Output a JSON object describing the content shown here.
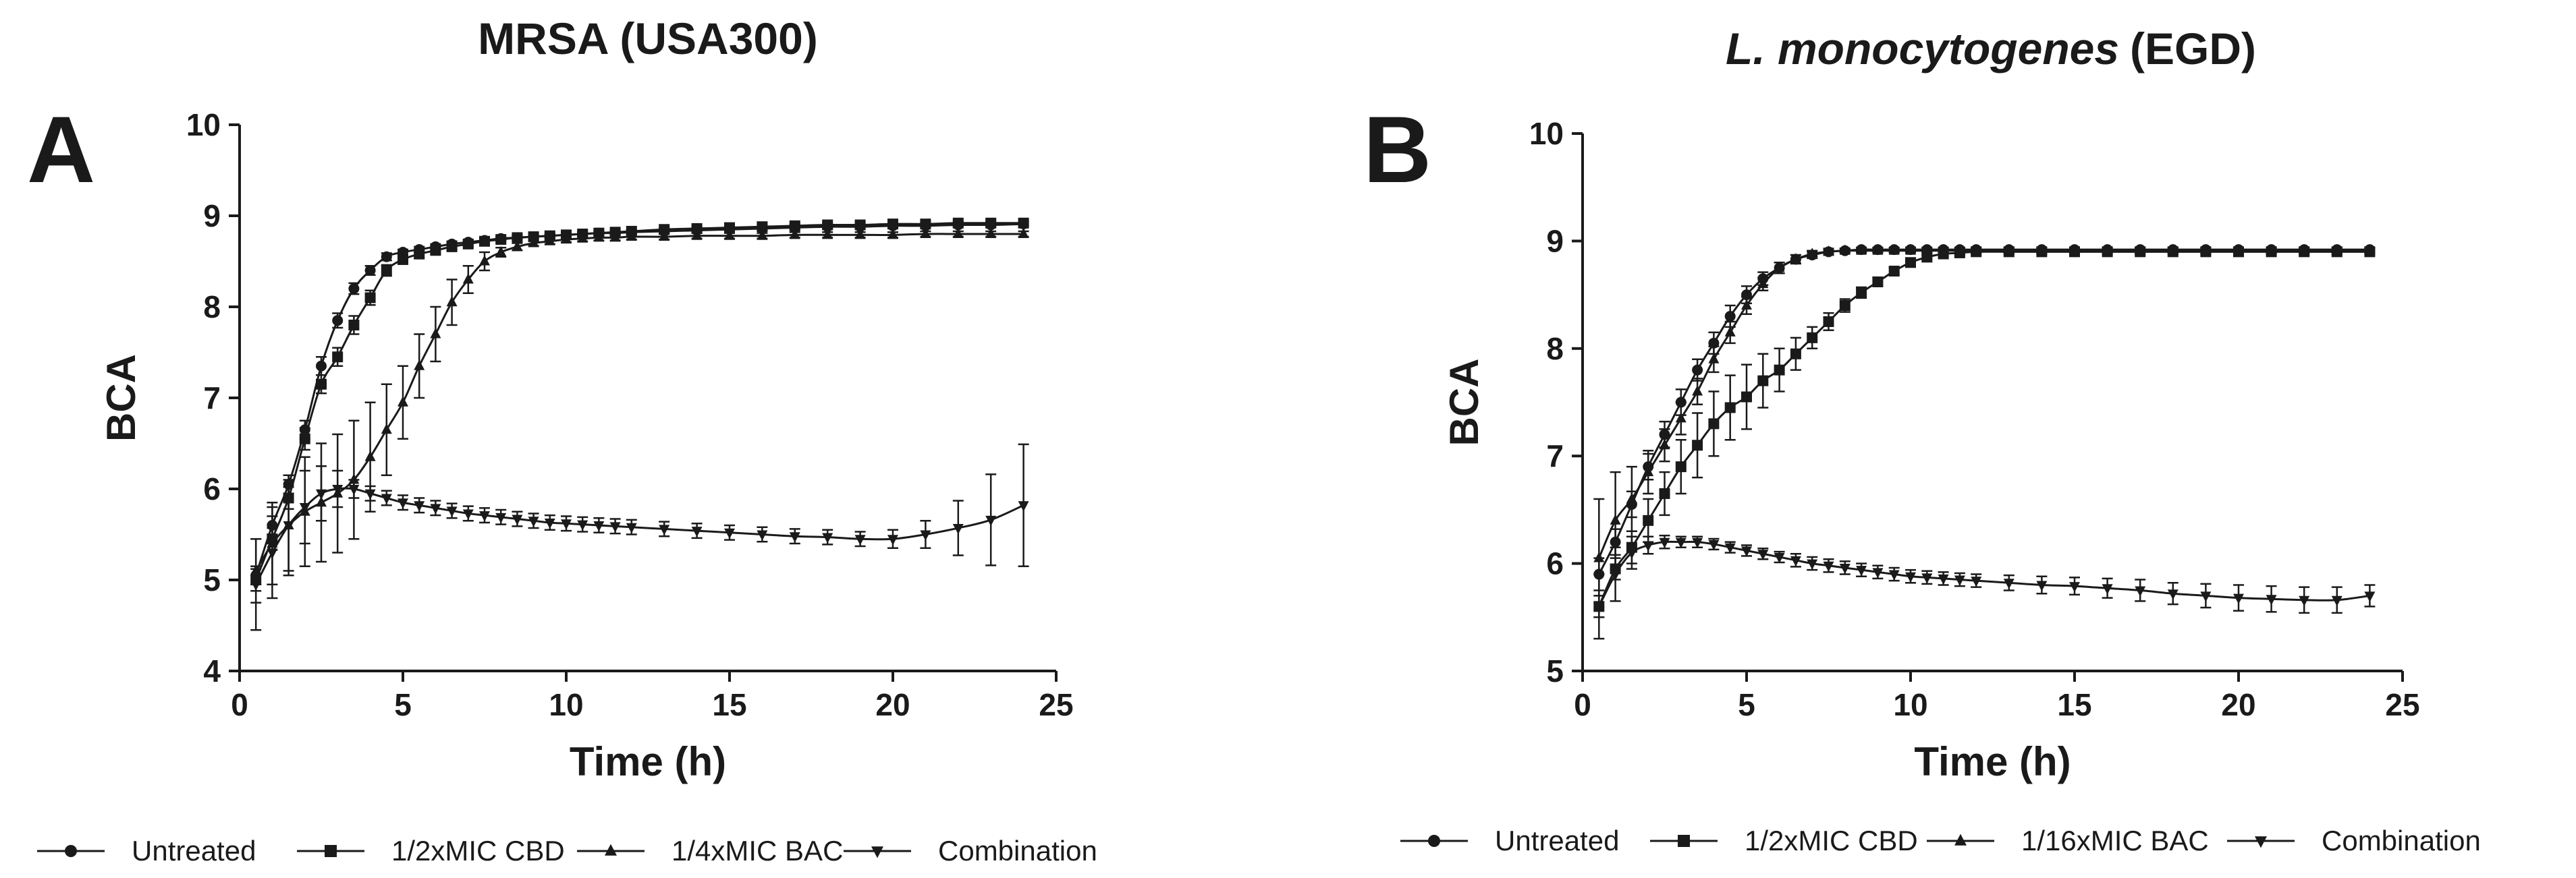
{
  "chart_data": [
    {
      "type": "line",
      "panel_label": "A",
      "title_main": "MRSA (USA300)",
      "title_italic": "",
      "xlabel": "Time (h)",
      "ylabel": "BCA",
      "xlim": [
        0,
        25
      ],
      "ylim": [
        4,
        10
      ],
      "xticks": [
        0,
        5,
        10,
        15,
        20,
        25
      ],
      "yticks": [
        4,
        5,
        6,
        7,
        8,
        9,
        10
      ],
      "series": [
        {
          "name": "Untreated",
          "marker": "circle",
          "x": [
            0.5,
            1,
            1.5,
            2,
            2.5,
            3,
            3.5,
            4,
            4.5,
            5,
            5.5,
            6,
            6.5,
            7,
            7.5,
            8,
            8.5,
            9,
            9.5,
            10,
            10.5,
            11,
            11.5,
            12,
            13,
            14,
            15,
            16,
            17,
            18,
            19,
            20,
            21,
            22,
            23,
            24
          ],
          "y": [
            5.05,
            5.6,
            6.05,
            6.65,
            7.35,
            7.85,
            8.2,
            8.4,
            8.55,
            8.6,
            8.63,
            8.66,
            8.69,
            8.71,
            8.73,
            8.75,
            8.76,
            8.77,
            8.78,
            8.79,
            8.8,
            8.81,
            8.81,
            8.82,
            8.83,
            8.84,
            8.85,
            8.86,
            8.87,
            8.88,
            8.88,
            8.89,
            8.89,
            8.9,
            8.9,
            8.91
          ],
          "err": [
            0.1,
            0.1,
            0.1,
            0.1,
            0.1,
            0.08,
            0.06,
            0.05,
            0.04,
            0.03,
            0.03,
            0.03,
            0.03,
            0.02,
            0.02,
            0.02,
            0.02,
            0.02,
            0.02,
            0.02,
            0.02,
            0.02,
            0.02,
            0.02,
            0.02,
            0.02,
            0.02,
            0.02,
            0.02,
            0.02,
            0.02,
            0.02,
            0.02,
            0.02,
            0.02,
            0.02
          ]
        },
        {
          "name": "1/2xMIC CBD",
          "marker": "square",
          "x": [
            0.5,
            1,
            1.5,
            2,
            2.5,
            3,
            3.5,
            4,
            4.5,
            5,
            5.5,
            6,
            6.5,
            7,
            7.5,
            8,
            8.5,
            9,
            9.5,
            10,
            10.5,
            11,
            11.5,
            12,
            13,
            14,
            15,
            16,
            17,
            18,
            19,
            20,
            21,
            22,
            23,
            24
          ],
          "y": [
            5.0,
            5.45,
            5.9,
            6.55,
            7.15,
            7.45,
            7.8,
            8.1,
            8.4,
            8.52,
            8.58,
            8.62,
            8.66,
            8.69,
            8.72,
            8.74,
            8.76,
            8.77,
            8.78,
            8.79,
            8.8,
            8.81,
            8.82,
            8.83,
            8.85,
            8.86,
            8.87,
            8.88,
            8.89,
            8.9,
            8.9,
            8.91,
            8.91,
            8.92,
            8.92,
            8.92
          ],
          "err": [
            0.12,
            0.12,
            0.12,
            0.12,
            0.1,
            0.1,
            0.1,
            0.08,
            0.06,
            0.05,
            0.04,
            0.04,
            0.03,
            0.03,
            0.03,
            0.02,
            0.02,
            0.02,
            0.02,
            0.02,
            0.02,
            0.02,
            0.02,
            0.02,
            0.02,
            0.02,
            0.02,
            0.02,
            0.02,
            0.02,
            0.02,
            0.02,
            0.02,
            0.02,
            0.02,
            0.02
          ]
        },
        {
          "name": "1/4xMIC BAC",
          "marker": "triangle-up",
          "x": [
            0.5,
            1,
            1.5,
            2,
            2.5,
            3,
            3.5,
            4,
            4.5,
            5,
            5.5,
            6,
            6.5,
            7,
            7.5,
            8,
            8.5,
            9,
            9.5,
            10,
            10.5,
            11,
            11.5,
            12,
            13,
            14,
            15,
            16,
            17,
            18,
            19,
            20,
            21,
            22,
            23,
            24
          ],
          "y": [
            5.1,
            5.4,
            5.6,
            5.75,
            5.85,
            5.95,
            6.1,
            6.35,
            6.65,
            6.95,
            7.35,
            7.7,
            8.05,
            8.3,
            8.5,
            8.6,
            8.66,
            8.7,
            8.72,
            8.74,
            8.75,
            8.76,
            8.76,
            8.77,
            8.77,
            8.78,
            8.78,
            8.78,
            8.79,
            8.79,
            8.79,
            8.79,
            8.8,
            8.8,
            8.8,
            8.8
          ],
          "err": [
            0.35,
            0.45,
            0.55,
            0.6,
            0.65,
            0.65,
            0.65,
            0.6,
            0.5,
            0.4,
            0.35,
            0.3,
            0.25,
            0.15,
            0.1,
            0.05,
            0.04,
            0.03,
            0.03,
            0.03,
            0.03,
            0.03,
            0.03,
            0.03,
            0.03,
            0.03,
            0.03,
            0.03,
            0.03,
            0.03,
            0.03,
            0.03,
            0.03,
            0.03,
            0.03,
            0.03
          ]
        },
        {
          "name": "Combination",
          "marker": "triangle-down",
          "x": [
            0.5,
            1,
            1.5,
            2,
            2.5,
            3,
            3.5,
            4,
            4.5,
            5,
            5.5,
            6,
            6.5,
            7,
            7.5,
            8,
            8.5,
            9,
            9.5,
            10,
            10.5,
            11,
            11.5,
            12,
            13,
            14,
            15,
            16,
            17,
            18,
            19,
            20,
            21,
            22,
            23,
            24
          ],
          "y": [
            4.95,
            5.3,
            5.6,
            5.8,
            5.95,
            6.0,
            6.0,
            5.95,
            5.9,
            5.85,
            5.82,
            5.79,
            5.76,
            5.73,
            5.71,
            5.69,
            5.67,
            5.65,
            5.63,
            5.62,
            5.61,
            5.6,
            5.59,
            5.58,
            5.56,
            5.54,
            5.52,
            5.5,
            5.48,
            5.47,
            5.45,
            5.45,
            5.5,
            5.57,
            5.66,
            5.82
          ],
          "err": [
            0.5,
            0.5,
            0.5,
            0.4,
            0.3,
            0.2,
            0.1,
            0.08,
            0.08,
            0.08,
            0.08,
            0.08,
            0.08,
            0.08,
            0.08,
            0.08,
            0.08,
            0.08,
            0.08,
            0.08,
            0.08,
            0.08,
            0.08,
            0.08,
            0.08,
            0.08,
            0.08,
            0.08,
            0.08,
            0.08,
            0.08,
            0.1,
            0.15,
            0.3,
            0.5,
            0.67
          ]
        }
      ]
    },
    {
      "type": "line",
      "panel_label": "B",
      "title_main": "(EGD)",
      "title_italic": "L. monocytogenes",
      "xlabel": "Time (h)",
      "ylabel": "BCA",
      "xlim": [
        0,
        25
      ],
      "ylim": [
        5,
        10
      ],
      "xticks": [
        0,
        5,
        10,
        15,
        20,
        25
      ],
      "yticks": [
        5,
        6,
        7,
        8,
        9,
        10
      ],
      "series": [
        {
          "name": "Untreated",
          "marker": "circle",
          "x": [
            0.5,
            1,
            1.5,
            2,
            2.5,
            3,
            3.5,
            4,
            4.5,
            5,
            5.5,
            6,
            6.5,
            7,
            7.5,
            8,
            8.5,
            9,
            9.5,
            10,
            10.5,
            11,
            11.5,
            12,
            13,
            14,
            15,
            16,
            17,
            18,
            19,
            20,
            21,
            22,
            23,
            24
          ],
          "y": [
            5.9,
            6.2,
            6.55,
            6.9,
            7.2,
            7.5,
            7.8,
            8.05,
            8.3,
            8.5,
            8.65,
            8.75,
            8.83,
            8.87,
            8.9,
            8.91,
            8.92,
            8.92,
            8.92,
            8.92,
            8.92,
            8.92,
            8.92,
            8.92,
            8.92,
            8.92,
            8.92,
            8.92,
            8.92,
            8.92,
            8.92,
            8.92,
            8.92,
            8.92,
            8.92,
            8.92
          ],
          "err": [
            0.15,
            0.12,
            0.12,
            0.12,
            0.12,
            0.12,
            0.1,
            0.1,
            0.1,
            0.08,
            0.06,
            0.05,
            0.04,
            0.03,
            0.03,
            0.02,
            0.02,
            0.02,
            0.02,
            0.02,
            0.02,
            0.02,
            0.02,
            0.02,
            0.02,
            0.02,
            0.02,
            0.02,
            0.02,
            0.02,
            0.02,
            0.02,
            0.02,
            0.02,
            0.02,
            0.02
          ]
        },
        {
          "name": "1/2xMIC CBD",
          "marker": "square",
          "x": [
            0.5,
            1,
            1.5,
            2,
            2.5,
            3,
            3.5,
            4,
            4.5,
            5,
            5.5,
            6,
            6.5,
            7,
            7.5,
            8,
            8.5,
            9,
            9.5,
            10,
            10.5,
            11,
            11.5,
            12,
            13,
            14,
            15,
            16,
            17,
            18,
            19,
            20,
            21,
            22,
            23,
            24
          ],
          "y": [
            5.6,
            5.95,
            6.15,
            6.4,
            6.65,
            6.9,
            7.1,
            7.3,
            7.45,
            7.55,
            7.7,
            7.8,
            7.95,
            8.1,
            8.25,
            8.4,
            8.52,
            8.62,
            8.72,
            8.8,
            8.85,
            8.88,
            8.89,
            8.9,
            8.9,
            8.9,
            8.9,
            8.9,
            8.9,
            8.9,
            8.9,
            8.9,
            8.9,
            8.9,
            8.9,
            8.9
          ],
          "err": [
            0.1,
            0.1,
            0.15,
            0.2,
            0.2,
            0.25,
            0.3,
            0.3,
            0.3,
            0.3,
            0.25,
            0.2,
            0.15,
            0.1,
            0.08,
            0.06,
            0.05,
            0.04,
            0.03,
            0.03,
            0.02,
            0.02,
            0.02,
            0.02,
            0.02,
            0.02,
            0.02,
            0.02,
            0.02,
            0.02,
            0.02,
            0.02,
            0.02,
            0.02,
            0.02,
            0.02
          ]
        },
        {
          "name": "1/16xMIC BAC",
          "marker": "triangle-up",
          "x": [
            0.5,
            1,
            1.5,
            2,
            2.5,
            3,
            3.5,
            4,
            4.5,
            5,
            5.5,
            6,
            6.5,
            7,
            7.5,
            8,
            8.5,
            9,
            9.5,
            10,
            10.5,
            11,
            11.5,
            12,
            13,
            14,
            15,
            16,
            17,
            18,
            19,
            20,
            21,
            22,
            23,
            24
          ],
          "y": [
            6.05,
            6.4,
            6.6,
            6.85,
            7.1,
            7.35,
            7.6,
            7.9,
            8.15,
            8.4,
            8.6,
            8.75,
            8.83,
            8.88,
            8.9,
            8.91,
            8.91,
            8.91,
            8.91,
            8.91,
            8.91,
            8.91,
            8.91,
            8.91,
            8.91,
            8.91,
            8.91,
            8.91,
            8.91,
            8.91,
            8.91,
            8.91,
            8.91,
            8.91,
            8.91,
            8.91
          ],
          "err": [
            0.55,
            0.45,
            0.3,
            0.2,
            0.15,
            0.15,
            0.12,
            0.12,
            0.1,
            0.08,
            0.06,
            0.05,
            0.04,
            0.03,
            0.02,
            0.02,
            0.02,
            0.02,
            0.02,
            0.02,
            0.02,
            0.02,
            0.02,
            0.02,
            0.02,
            0.02,
            0.02,
            0.02,
            0.02,
            0.02,
            0.02,
            0.02,
            0.02,
            0.02,
            0.02,
            0.02
          ]
        },
        {
          "name": "Combination",
          "marker": "triangle-down",
          "x": [
            0.5,
            1,
            1.5,
            2,
            2.5,
            3,
            3.5,
            4,
            4.5,
            5,
            5.5,
            6,
            6.5,
            7,
            7.5,
            8,
            8.5,
            9,
            9.5,
            10,
            10.5,
            11,
            11.5,
            12,
            13,
            14,
            15,
            16,
            17,
            18,
            19,
            20,
            21,
            22,
            23,
            24
          ],
          "y": [
            5.6,
            5.9,
            6.1,
            6.17,
            6.2,
            6.2,
            6.2,
            6.18,
            6.15,
            6.12,
            6.09,
            6.06,
            6.03,
            6.0,
            5.98,
            5.96,
            5.94,
            5.92,
            5.9,
            5.88,
            5.87,
            5.86,
            5.85,
            5.84,
            5.82,
            5.8,
            5.79,
            5.77,
            5.75,
            5.72,
            5.7,
            5.68,
            5.67,
            5.66,
            5.66,
            5.7
          ],
          "err": [
            0.3,
            0.25,
            0.15,
            0.08,
            0.06,
            0.05,
            0.05,
            0.05,
            0.05,
            0.05,
            0.05,
            0.05,
            0.06,
            0.06,
            0.06,
            0.06,
            0.06,
            0.06,
            0.06,
            0.06,
            0.06,
            0.06,
            0.06,
            0.06,
            0.07,
            0.08,
            0.08,
            0.09,
            0.1,
            0.1,
            0.11,
            0.12,
            0.12,
            0.12,
            0.12,
            0.1
          ]
        }
      ]
    }
  ]
}
